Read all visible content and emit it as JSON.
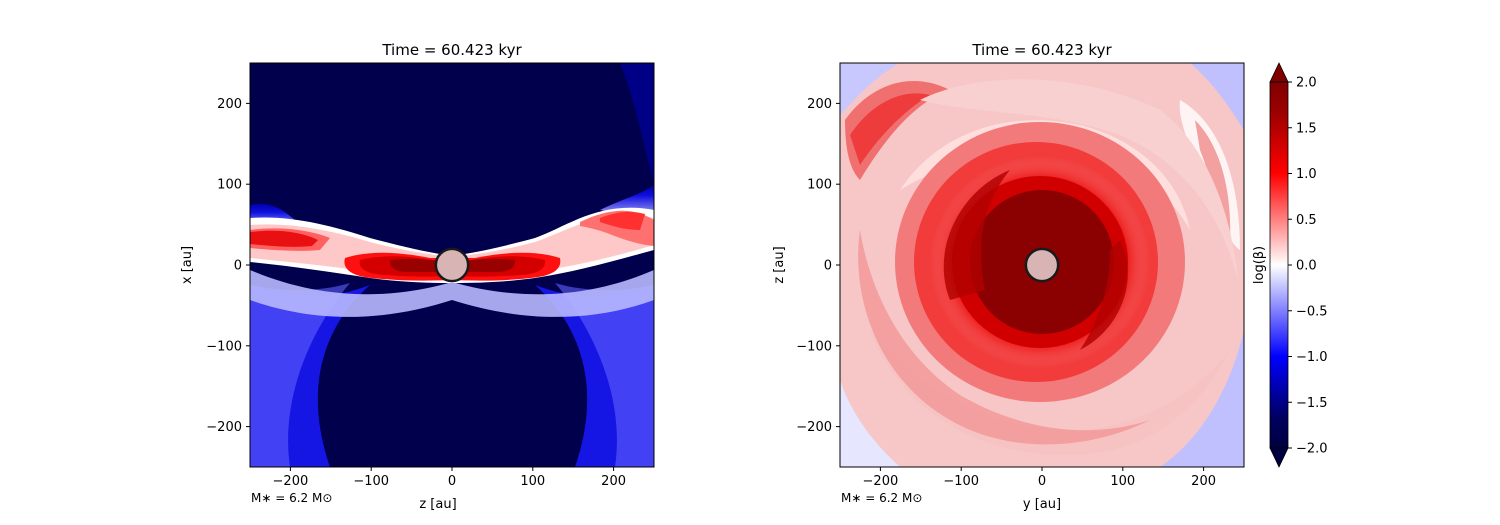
{
  "chart_data": [
    {
      "type": "heatmap",
      "title": "Time = 60.423 kyr",
      "xlabel": "z [au]",
      "ylabel": "x [au]",
      "xlim": [
        -250,
        250
      ],
      "ylim": [
        -250,
        250
      ],
      "xticks": [
        -200,
        -100,
        0,
        100,
        200
      ],
      "yticks": [
        -200,
        -100,
        0,
        100,
        200
      ],
      "annotation": "M∗ = 6.2 M⊙",
      "sink_radius_au": 20,
      "colors": {
        "sink_fill": "#d8b4b4",
        "sink_edge": "#1a1a1a"
      }
    },
    {
      "type": "heatmap",
      "title": "Time = 60.423 kyr",
      "xlabel": "y [au]",
      "ylabel": "z [au]",
      "xlim": [
        -250,
        250
      ],
      "ylim": [
        -250,
        250
      ],
      "xticks": [
        -200,
        -100,
        0,
        100,
        200
      ],
      "yticks": [
        -200,
        -100,
        0,
        100,
        200
      ],
      "annotation": "M∗ = 6.2 M⊙",
      "sink_radius_au": 20,
      "colors": {
        "sink_fill": "#d8b4b4",
        "sink_edge": "#1a1a1a"
      }
    }
  ],
  "colorbar": {
    "label": "log(β)",
    "min": -2.0,
    "max": 2.0,
    "ticks": [
      "-2.0",
      "-1.5",
      "-1.0",
      "-0.5",
      "0.0",
      "0.5",
      "1.0",
      "1.5",
      "2.0"
    ],
    "colormap": "seismic"
  }
}
